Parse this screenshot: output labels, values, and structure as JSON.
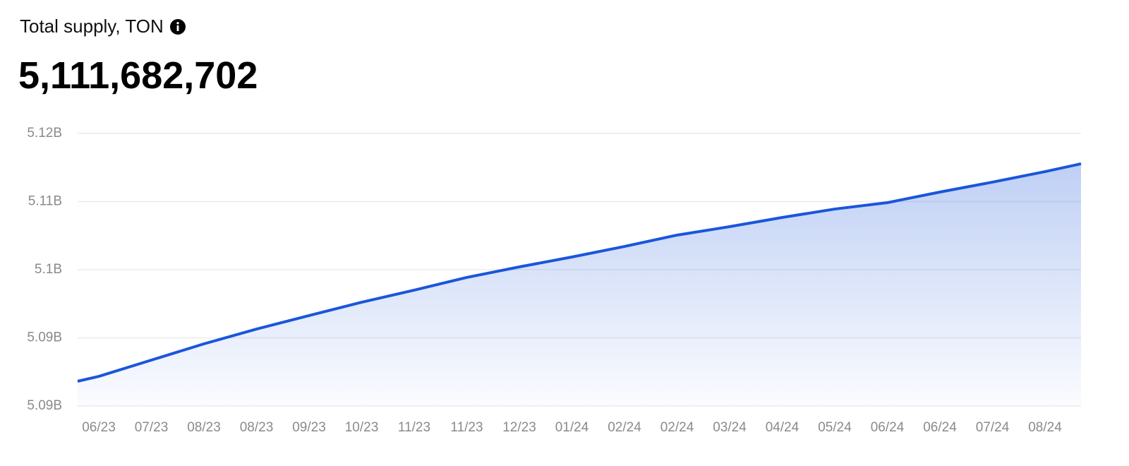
{
  "header": {
    "title": "Total supply, TON",
    "value": "5,111,682,702"
  },
  "chart_data": {
    "type": "area",
    "color": "#1a56db",
    "grid": true,
    "categories": [
      null,
      "06/23",
      "07/23",
      "08/23",
      "08/23",
      "09/23",
      "10/23",
      "11/23",
      "11/23",
      "12/23",
      "01/24",
      "02/24",
      "02/24",
      "03/24",
      "04/24",
      "05/24",
      "06/24",
      "06/24",
      "07/24",
      "08/24",
      null
    ],
    "values": [
      5090220000,
      5090760000,
      5092550000,
      5094340000,
      5095970000,
      5097450000,
      5098920000,
      5100250000,
      5101650000,
      5102810000,
      5103900000,
      5105060000,
      5106310000,
      5107240000,
      5108250000,
      5109180000,
      5109880000,
      5111050000,
      5112140000,
      5113300000,
      5114160000
    ],
    "ylim": [
      5087500000,
      5117500000
    ],
    "yticks": [
      {
        "value": 5087500000,
        "label": "5.09B"
      },
      {
        "value": 5095000000,
        "label": "5.09B"
      },
      {
        "value": 5102500000,
        "label": "5.1B"
      },
      {
        "value": 5110000000,
        "label": "5.11B"
      },
      {
        "value": 5117500000,
        "label": "5.12B"
      }
    ]
  }
}
